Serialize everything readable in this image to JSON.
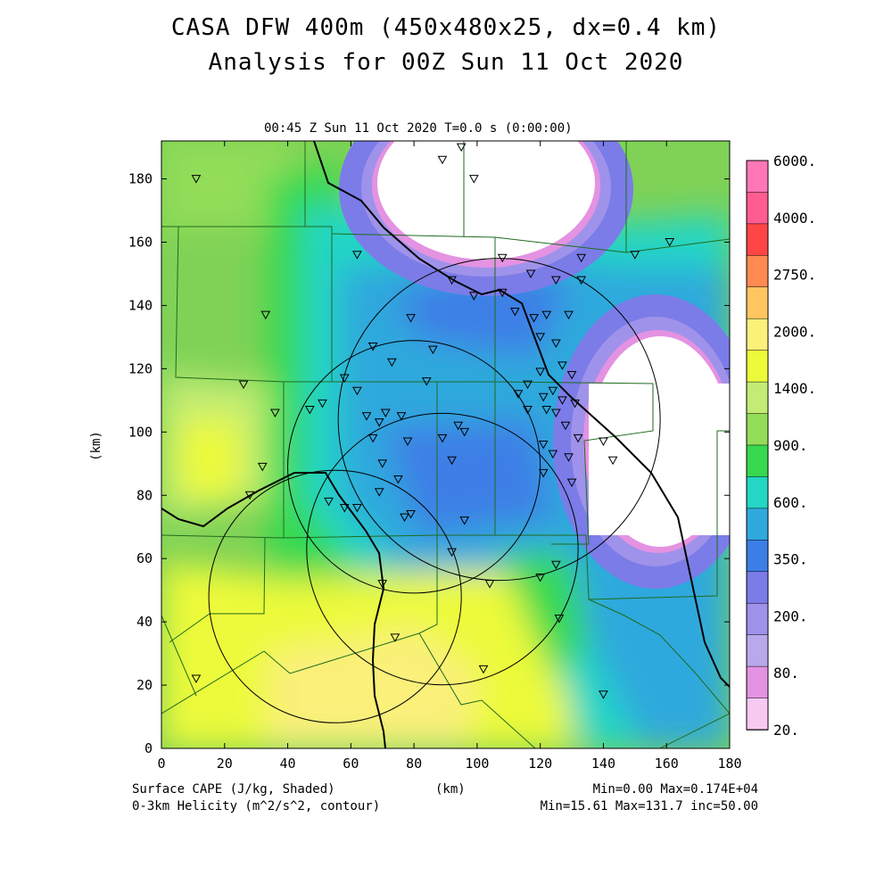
{
  "title": {
    "line1": "CASA DFW 400m (450x480x25, dx=0.4 km)",
    "line2": "Analysis for 00Z Sun 11 Oct 2020"
  },
  "subtitle": "00:45 Z Sun 11 Oct 2020    T=0.0 s (0:00:00)",
  "axes": {
    "xlabel": "(km)",
    "ylabel": "(km)",
    "x_ticks": [
      "0",
      "20",
      "40",
      "60",
      "80",
      "100",
      "120",
      "140",
      "160",
      "180"
    ],
    "y_ticks": [
      "0",
      "20",
      "40",
      "60",
      "80",
      "100",
      "120",
      "140",
      "160",
      "180"
    ]
  },
  "legend": {
    "levels": [
      "6000.",
      "4000.",
      "2750.",
      "2000.",
      "1400.",
      "900.",
      "600.",
      "350.",
      "200.",
      "80.",
      "20."
    ],
    "colors": [
      "#ff77b6",
      "#ff5d8f",
      "#ff4545",
      "#ff8a52",
      "#ffc660",
      "#faf07a",
      "#ecfa3a",
      "#c3ec74",
      "#93dd58",
      "#36d94f",
      "#24d6c5",
      "#2fa9dd",
      "#3c7fe6",
      "#7b7ce8",
      "#9f92ea",
      "#b9a8ec",
      "#e492e2",
      "#f7c9f2"
    ]
  },
  "footer": {
    "left1": "Surface CAPE (J/kg, Shaded)",
    "left2": "0-3km Helicity (m^2/s^2, contour)",
    "center": "(km)",
    "right1": "Min=0.00  Max=0.174E+04",
    "right2": "Min=15.61 Max=131.7 inc=50.00"
  },
  "stations": [
    [
      11,
      180
    ],
    [
      95,
      190
    ],
    [
      89,
      186
    ],
    [
      99,
      180
    ],
    [
      33,
      137
    ],
    [
      62,
      156
    ],
    [
      79,
      136
    ],
    [
      86,
      126
    ],
    [
      73,
      122
    ],
    [
      84,
      116
    ],
    [
      67,
      127
    ],
    [
      62,
      113
    ],
    [
      51,
      109
    ],
    [
      58,
      117
    ],
    [
      47,
      107
    ],
    [
      65,
      105
    ],
    [
      69,
      103
    ],
    [
      71,
      106
    ],
    [
      76,
      105
    ],
    [
      67,
      98
    ],
    [
      78,
      97
    ],
    [
      89,
      98
    ],
    [
      94,
      102
    ],
    [
      96,
      100
    ],
    [
      92,
      91
    ],
    [
      70,
      90
    ],
    [
      75,
      85
    ],
    [
      69,
      81
    ],
    [
      53,
      78
    ],
    [
      58,
      76
    ],
    [
      62,
      76
    ],
    [
      79,
      74
    ],
    [
      77,
      73
    ],
    [
      96,
      72
    ],
    [
      92,
      62
    ],
    [
      70,
      52
    ],
    [
      104,
      52
    ],
    [
      120,
      54
    ],
    [
      125,
      58
    ],
    [
      126,
      41
    ],
    [
      74,
      35
    ],
    [
      102,
      25
    ],
    [
      140,
      17
    ],
    [
      26,
      115
    ],
    [
      36,
      106
    ],
    [
      32,
      89
    ],
    [
      28,
      80
    ],
    [
      11,
      22
    ],
    [
      92,
      148
    ],
    [
      99,
      143
    ],
    [
      108,
      144
    ],
    [
      112,
      138
    ],
    [
      118,
      136
    ],
    [
      122,
      137
    ],
    [
      120,
      130
    ],
    [
      129,
      137
    ],
    [
      125,
      128
    ],
    [
      127,
      121
    ],
    [
      120,
      119
    ],
    [
      127,
      110
    ],
    [
      125,
      106
    ],
    [
      131,
      109
    ],
    [
      128,
      102
    ],
    [
      121,
      96
    ],
    [
      124,
      93
    ],
    [
      129,
      92
    ],
    [
      132,
      98
    ],
    [
      121,
      87
    ],
    [
      130,
      84
    ],
    [
      108,
      155
    ],
    [
      117,
      150
    ],
    [
      125,
      148
    ],
    [
      133,
      155
    ],
    [
      133,
      148
    ],
    [
      116,
      115
    ],
    [
      113,
      112
    ],
    [
      121,
      111
    ],
    [
      122,
      107
    ],
    [
      140,
      97
    ],
    [
      143,
      91
    ],
    [
      150,
      156
    ],
    [
      161,
      160
    ],
    [
      116,
      107
    ],
    [
      124,
      113
    ],
    [
      130,
      118
    ]
  ],
  "helicity_rings": [
    {
      "cx": 107,
      "cy": 104,
      "r": 51
    },
    {
      "cx": 80,
      "cy": 89,
      "r": 40
    },
    {
      "cx": 89,
      "cy": 63,
      "r": 43
    },
    {
      "cx": 55,
      "cy": 48,
      "r": 40
    }
  ]
}
